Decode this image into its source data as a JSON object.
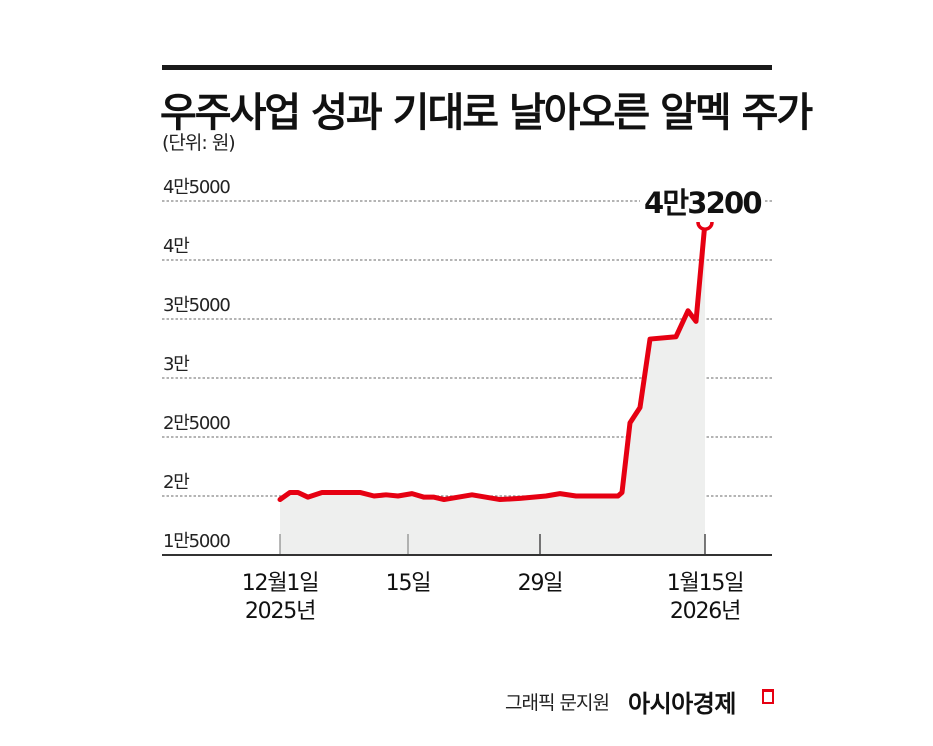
{
  "header": {
    "title": "우주사업 성과 기대로 날아오른 알멕 주가",
    "unit": "(단위: 원)"
  },
  "peak_label": "4만3200",
  "footer": {
    "credit": "그래픽 문지원",
    "brand": "아시아경제"
  },
  "colors": {
    "line": "#e60012",
    "area": "#eeefee",
    "grid": "#888888",
    "axis": "#333333",
    "text": "#111111"
  },
  "y_ticks": [
    {
      "label": "4만5000",
      "value": 45000
    },
    {
      "label": "4만",
      "value": 40000
    },
    {
      "label": "3만5000",
      "value": 35000
    },
    {
      "label": "3만",
      "value": 30000
    },
    {
      "label": "2만5000",
      "value": 25000
    },
    {
      "label": "2만",
      "value": 20000
    },
    {
      "label": "1만5000",
      "value": 15000
    }
  ],
  "x_ticks": [
    {
      "line1": "12월1일",
      "line2": "2025년"
    },
    {
      "line1": "15일",
      "line2": ""
    },
    {
      "line1": "29일",
      "line2": ""
    },
    {
      "line1": "1월15일",
      "line2": "2026년"
    }
  ],
  "chart_data": {
    "type": "area",
    "title": "우주사업 성과 기대로 날아오른 알멕 주가",
    "subtitle": "(단위: 원)",
    "xlabel": "",
    "ylabel": "원",
    "ylim": [
      15000,
      45000
    ],
    "grid": true,
    "legend": "none",
    "x_tick_labels": [
      "12월1일 2025년",
      "15일",
      "29일",
      "1월15일 2026년"
    ],
    "annotations": [
      {
        "text": "4만3200",
        "x": "2026-01-15",
        "y": 43200
      }
    ],
    "series": [
      {
        "name": "알멕 주가",
        "x": [
          "12/1",
          "12/2",
          "12/3",
          "12/4",
          "12/5",
          "12/8",
          "12/9",
          "12/10",
          "12/11",
          "12/12",
          "12/15",
          "12/16",
          "12/17",
          "12/18",
          "12/19",
          "12/22",
          "12/23",
          "12/24",
          "12/26",
          "12/29",
          "12/30",
          "1/2",
          "1/5",
          "1/6",
          "1/7",
          "1/8",
          "1/9",
          "1/12",
          "1/13",
          "1/14",
          "1/15"
        ],
        "values": [
          19700,
          20300,
          20300,
          19900,
          20300,
          20300,
          20300,
          20000,
          20100,
          20000,
          20200,
          19900,
          19900,
          19700,
          20100,
          19700,
          19800,
          20000,
          20200,
          20000,
          20000,
          20000,
          20000,
          20300,
          26200,
          27500,
          33300,
          33500,
          35700,
          34800,
          43200
        ]
      }
    ]
  }
}
